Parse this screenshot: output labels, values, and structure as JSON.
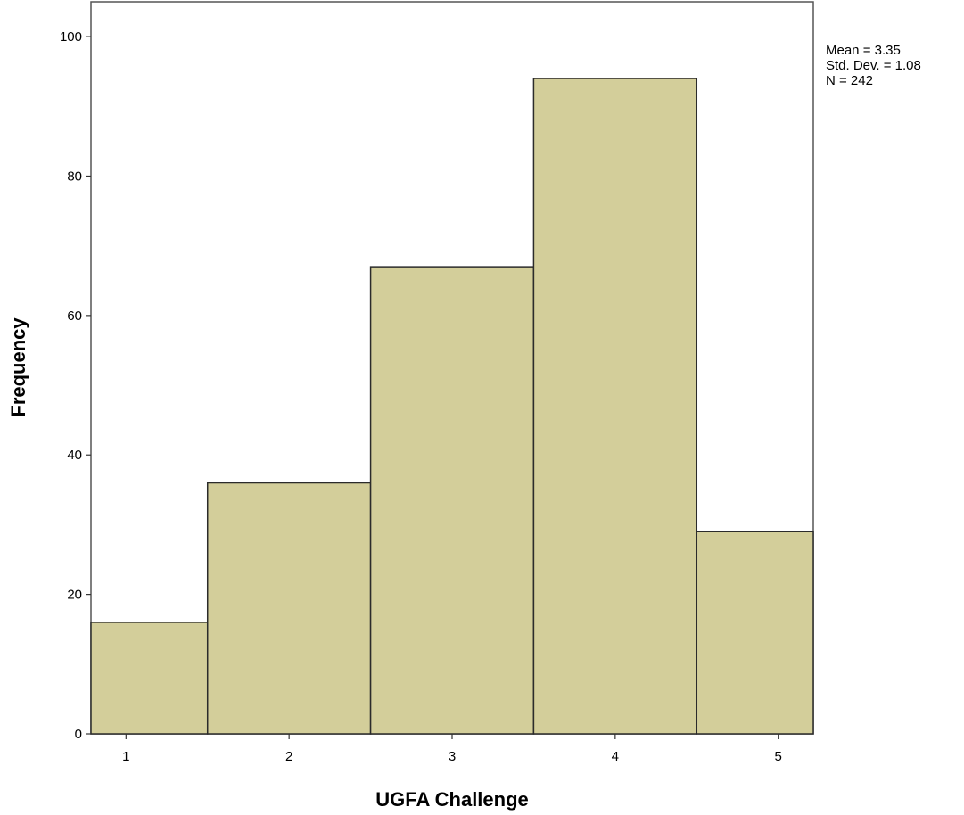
{
  "chart_data": {
    "type": "bar",
    "categories": [
      "1",
      "2",
      "3",
      "4",
      "5"
    ],
    "values": [
      16,
      36,
      67,
      94,
      29
    ],
    "xlabel": "UGFA Challenge",
    "ylabel": "Frequency",
    "ylim": [
      0,
      105
    ],
    "y_ticks": [
      0,
      20,
      40,
      60,
      80,
      100
    ],
    "grid": false,
    "legend": "none",
    "colors": {
      "bar_fill": "#d3ce9a",
      "bar_stroke": "#2b2b2b",
      "frame": "#555555"
    },
    "stats": [
      "Mean = 3.35",
      "Std. Dev. = 1.08",
      "N = 242"
    ]
  }
}
